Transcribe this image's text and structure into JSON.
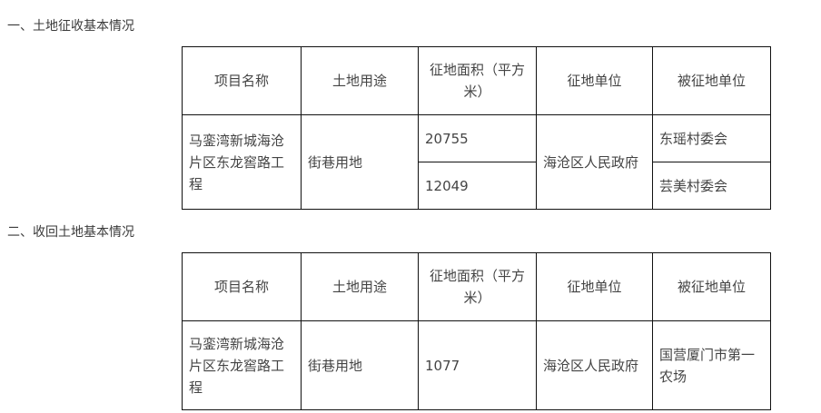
{
  "section1": {
    "title": "一、土地征收基本情况",
    "headers": [
      "项目名称",
      "土地用途",
      "征地面积（平方米）",
      "征地单位",
      "被征地单位"
    ],
    "row": {
      "project": "马銮湾新城海沧片区东龙窖路工程",
      "use": "街巷用地",
      "areas": [
        "20755",
        "12049"
      ],
      "unit": "海沧区人民政府",
      "owners": [
        "东瑶村委会",
        "芸美村委会"
      ]
    }
  },
  "section2": {
    "title": "二、收回土地基本情况",
    "headers": [
      "项目名称",
      "土地用途",
      "征地面积（平方米）",
      "征地单位",
      "被征地单位"
    ],
    "row": {
      "project": "马銮湾新城海沧片区东龙窖路工程",
      "use": "街巷用地",
      "area": "1077",
      "unit": "海沧区人民政府",
      "owner": "国营厦门市第一农场"
    }
  }
}
